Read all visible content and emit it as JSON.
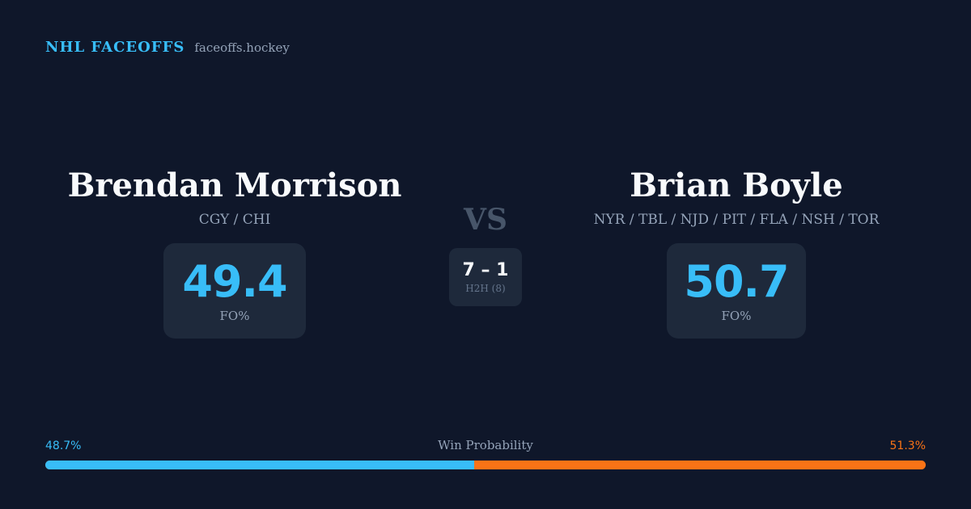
{
  "brand": {
    "title": "NHL FACEOFFS",
    "url": "faceoffs.hockey"
  },
  "players": [
    {
      "name": "Brendan Morrison",
      "teams": "CGY / CHI",
      "fo_pct": "49.4",
      "fo_label": "FO%"
    },
    {
      "name": "Brian Boyle",
      "teams": "NYR / TBL / NJD / PIT / FLA / NSH / TOR",
      "fo_pct": "50.7",
      "fo_label": "FO%"
    }
  ],
  "versus": "VS",
  "h2h": {
    "score": "7 – 1",
    "label": "H2H (8)"
  },
  "win_probability": {
    "title": "Win Probability",
    "left_label": "48.7%",
    "right_label": "51.3%",
    "left_fraction": 0.487,
    "left_color": "#38bdf8",
    "right_color": "#f97316"
  },
  "colors": {
    "background": "#0f172a",
    "card": "#1e293b",
    "accent": "#38bdf8",
    "opponent": "#f97316"
  }
}
